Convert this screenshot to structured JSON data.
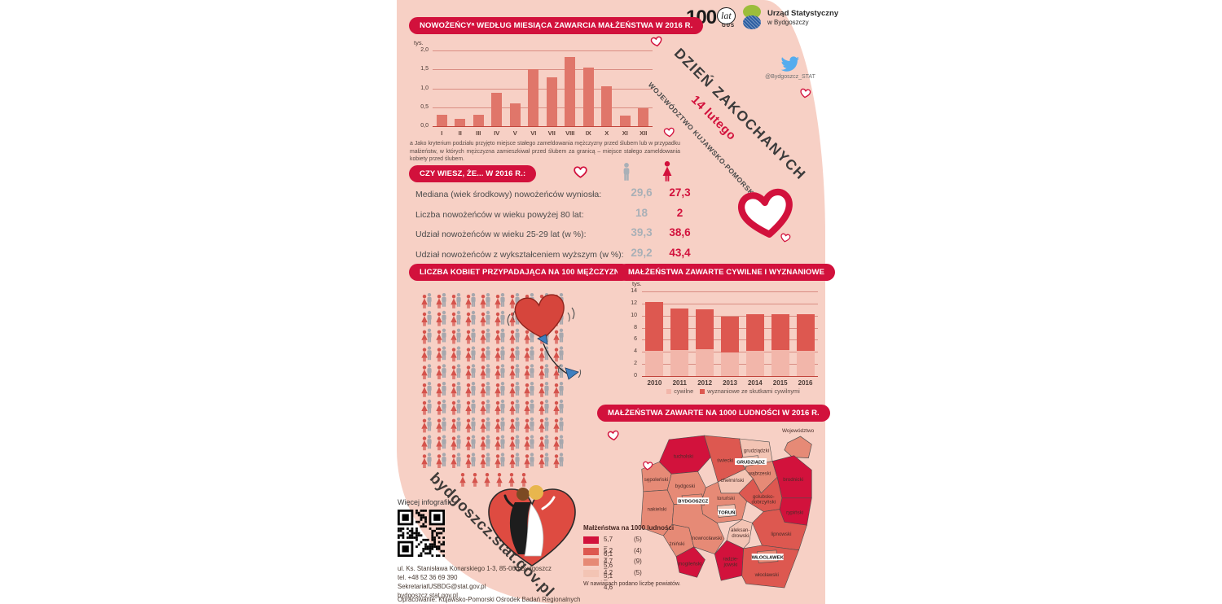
{
  "colors": {
    "accent": "#d2113c",
    "background": "#f7d0c5",
    "bar": "#e0766a",
    "male_gray": "#a9b0b7",
    "female_red": "#d2113c",
    "civil": "#f2b6aa",
    "religious": "#dd5850",
    "map_levels": [
      "#d2123c",
      "#dd5850",
      "#e68a76",
      "#f3c4b4"
    ],
    "twitter_blue": "#55acee"
  },
  "branding": {
    "gus100": {
      "number": "100",
      "lat": "lat",
      "gus": "GUS"
    },
    "office_line1": "Urząd Statystyczny",
    "office_line2": "w Bydgoszczy",
    "twitter_handle": "@Bydgoszcz_STAT"
  },
  "header": {
    "title_rotated": "DZIEŃ ZAKOCHANYCH",
    "date_rotated": "14 lutego",
    "region_rotated": "WOJEWÓDZTWO KUJAWSKO-POMORSKIE"
  },
  "sections": {
    "monthly": {
      "title": "NOWOŻEŃCYᵃ WEDŁUG MIESIĄCA ZAWARCIA MAŁŻEŃSTWA W 2016 R.",
      "footnote": "a Jako kryterium podziału przyjęto miejsce stałego zameldowania mężczyzny przed ślubem lub w przypadku małżeństw, w których mężczyzna zamieszkiwał przed ślubem za granicą – miejsce stałego zameldowania kobiety przed ślubem."
    },
    "facts": {
      "title": "CZY WIESZ, ŻE... W 2016 R.:",
      "rows": [
        {
          "label": "Mediana (wiek środkowy) nowożeńców wyniosła:",
          "male": "29,6",
          "female": "27,3"
        },
        {
          "label": "Liczba nowożeńców w wieku powyżej 80 lat:",
          "male": "18",
          "female": "2"
        },
        {
          "label": "Udział nowożeńców w wieku 25-29 lat (w %):",
          "male": "39,3",
          "female": "38,6"
        },
        {
          "label": "Udział nowożeńców z wykształceniem wyższym (w %):",
          "male": "29,2",
          "female": "43,4"
        }
      ]
    },
    "women_per_men": {
      "title": "LICZBA KOBIET PRZYPADAJĄCA NA 100 MĘŻCZYZN",
      "pairs": 100,
      "extra_women": 6
    },
    "marriage_types": {
      "title": "MAŁŻEŃSTWA ZAWARTE CYWILNE I WYZNANIOWE"
    },
    "map": {
      "title": "MAŁŻEŃSTWA ZAWARTE NA 1000 LUDNOŚCI W 2016 R.",
      "inset_label": "Województwo",
      "legend_title": "Małżeństwa na 1000 ludności",
      "legend": [
        {
          "range": "5,7 – 6,1",
          "count": "(5)"
        },
        {
          "range": "5,2 – 5,6",
          "count": "(4)"
        },
        {
          "range": "4,7 – 5,1",
          "count": "(9)"
        },
        {
          "range": "4,2 – 4,6",
          "count": "(5)"
        }
      ],
      "legend_note": "W nawiasach podano liczbę powiatów.",
      "districts": [
        {
          "id": "tucholski",
          "label": "tucholski",
          "level": 1
        },
        {
          "id": "swiecki",
          "label": "świecki",
          "level": 2
        },
        {
          "id": "grudziadzki",
          "label": "grudziądzki",
          "level": 4
        },
        {
          "id": "grudziadz",
          "label": "GRUDZIĄDZ",
          "level": 4,
          "city": true
        },
        {
          "id": "sepolenski",
          "label": "sępoleński",
          "level": 3
        },
        {
          "id": "bydgoski",
          "label": "bydgoski",
          "level": 3
        },
        {
          "id": "chelminski",
          "label": "chełmiński",
          "level": 4
        },
        {
          "id": "wabrzeski",
          "label": "wąbrzeski",
          "level": 3
        },
        {
          "id": "brodnicki",
          "label": "brodnicki",
          "level": 1
        },
        {
          "id": "rypinski",
          "label": "rypiński",
          "level": 1
        },
        {
          "id": "golubsko",
          "label": "golubsko-|dobrzyński",
          "level": 2
        },
        {
          "id": "nakielski",
          "label": "nakielski",
          "level": 3
        },
        {
          "id": "torunski",
          "label": "toruński",
          "level": 3
        },
        {
          "id": "bydgoszcz",
          "label": "BYDGOSZCZ",
          "level": 3,
          "city": true
        },
        {
          "id": "torun",
          "label": "TORUŃ",
          "level": 4,
          "city": true
        },
        {
          "id": "aleksandrowski",
          "label": "aleksan-|drowski",
          "level": 4
        },
        {
          "id": "lipnowski",
          "label": "lipnowski",
          "level": 2
        },
        {
          "id": "zninski",
          "label": "żniński",
          "level": 3
        },
        {
          "id": "inowroclawski",
          "label": "inowrocławski",
          "level": 3
        },
        {
          "id": "mogilenski",
          "label": "mogileński",
          "level": 1
        },
        {
          "id": "radziejowski",
          "label": "radzie-|jowski",
          "level": 1
        },
        {
          "id": "wloclawski",
          "label": "włocławski",
          "level": 2
        },
        {
          "id": "wloclawek",
          "label": "WŁOCŁAWEK",
          "level": 3,
          "city": true
        }
      ]
    }
  },
  "chart_data": [
    {
      "type": "bar",
      "title": "NOWOŻEŃCY WEDŁUG MIESIĄCA ZAWARCIA MAŁŻEŃSTWA W 2016 R.",
      "unit": "tys.",
      "categories": [
        "I",
        "II",
        "III",
        "IV",
        "V",
        "VI",
        "VII",
        "VIII",
        "IX",
        "X",
        "XI",
        "XII"
      ],
      "values": [
        0.3,
        0.2,
        0.3,
        0.89,
        0.6,
        1.51,
        1.3,
        1.83,
        1.55,
        1.05,
        0.28,
        0.48
      ],
      "ylim": [
        0,
        2
      ],
      "yticks": [
        "0,0",
        "0,5",
        "1,0",
        "1,5",
        "2,0"
      ],
      "grid": true,
      "legend_position": "none"
    },
    {
      "type": "bar",
      "subtype": "stacked",
      "title": "MAŁŻEŃSTWA ZAWARTE CYWILNE I WYZNANIOWE",
      "unit": "tys.",
      "categories": [
        "2010",
        "2011",
        "2012",
        "2013",
        "2014",
        "2015",
        "2016"
      ],
      "series": [
        {
          "name": "cywilne",
          "color": "#f2b6aa",
          "values": [
            4.2,
            4.3,
            4.5,
            3.9,
            4.2,
            4.3,
            4.2
          ]
        },
        {
          "name": "wyznaniowe ze skutkami cywilnymi",
          "color": "#dd5850",
          "values": [
            8.1,
            6.9,
            6.6,
            5.9,
            6.0,
            5.95,
            6.1
          ]
        }
      ],
      "ylim": [
        0,
        14
      ],
      "yticks": [
        "0",
        "2",
        "4",
        "6",
        "8",
        "10",
        "12",
        "14"
      ],
      "grid": true,
      "legend_position": "bottom"
    }
  ],
  "footer": {
    "more_label": "Więcej infografik:",
    "site_rotated": "bydgoszcz.stat.gov.pl",
    "address_lines": [
      "ul. Ks. Stanisława Konarskiego 1-3, 85-066 Bydgoszcz",
      "tel. +48 52 36 69 390",
      "SekretariatUSBDG@stat.gov.pl",
      "bydgoszcz.stat.gov.pl"
    ],
    "credit": "Opracowanie: Kujawsko-Pomorski Ośrodek Badań Regionalnych"
  }
}
